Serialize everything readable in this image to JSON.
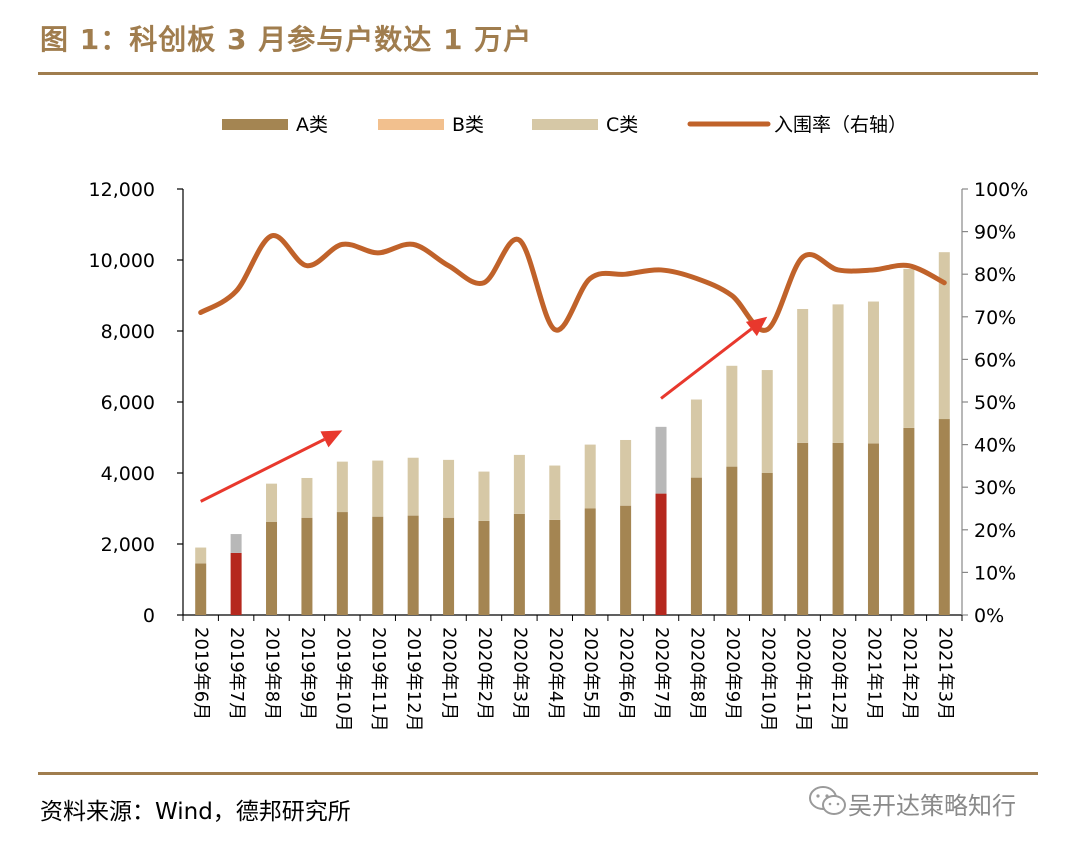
{
  "figure": {
    "title": "图 1：科创板 3 月参与户数达 1 万户",
    "source": "资料来源：Wind，德邦研究所",
    "watermark": "吴开达策略知行"
  },
  "chart_data": {
    "type": "bar",
    "stacked": true,
    "title": "",
    "legend": [
      "A类",
      "B类",
      "C类",
      "入围率（右轴）"
    ],
    "legend_position": "top",
    "categories": [
      "2019年6月",
      "2019年7月",
      "2019年8月",
      "2019年9月",
      "2019年10月",
      "2019年11月",
      "2019年12月",
      "2020年1月",
      "2020年2月",
      "2020年3月",
      "2020年4月",
      "2020年5月",
      "2020年6月",
      "2020年7月",
      "2020年8月",
      "2020年9月",
      "2020年10月",
      "2020年11月",
      "2020年12月",
      "2021年1月",
      "2021年2月",
      "2021年3月"
    ],
    "series": [
      {
        "name": "A类",
        "type": "bar",
        "axis": "left",
        "color": "#a48552",
        "values": [
          1450,
          1750,
          2620,
          2740,
          2900,
          2770,
          2800,
          2740,
          2650,
          2850,
          2680,
          3000,
          3080,
          3420,
          3870,
          4180,
          4000,
          4850,
          4850,
          4830,
          5270,
          5520
        ]
      },
      {
        "name": "B类",
        "type": "bar",
        "axis": "left",
        "color": "#f2c08e",
        "values": [
          0,
          0,
          0,
          0,
          0,
          0,
          0,
          0,
          0,
          0,
          0,
          0,
          0,
          0,
          0,
          0,
          0,
          0,
          0,
          0,
          0,
          0
        ]
      },
      {
        "name": "C类",
        "type": "bar",
        "axis": "left",
        "color": "#d6c8a6",
        "values": [
          450,
          530,
          1080,
          1120,
          1420,
          1580,
          1630,
          1630,
          1390,
          1660,
          1530,
          1800,
          1850,
          1880,
          2200,
          2840,
          2900,
          3770,
          3900,
          4000,
          4480,
          4700
        ]
      },
      {
        "name": "入围率（右轴）",
        "type": "line",
        "axis": "right",
        "color": "#c0622a",
        "values": [
          71,
          76,
          89,
          82,
          87,
          85,
          87,
          82,
          78,
          88,
          67,
          79,
          80,
          81,
          79,
          75,
          67,
          84,
          81,
          81,
          82,
          78
        ]
      }
    ],
    "left_axis": {
      "ylim": [
        0,
        12000
      ],
      "ticks": [
        "0",
        "2,000",
        "4,000",
        "6,000",
        "8,000",
        "10,000",
        "12,000"
      ]
    },
    "right_axis": {
      "ylim": [
        0,
        100
      ],
      "ticks": [
        "0%",
        "10%",
        "20%",
        "30%",
        "40%",
        "50%",
        "60%",
        "70%",
        "80%",
        "90%",
        "100%"
      ]
    },
    "highlights": [
      {
        "category": "2019年7月",
        "lower_color": "#b5281e",
        "upper_color": "#b8b8b8"
      },
      {
        "category": "2020年7月",
        "lower_color": "#b5281e",
        "upper_color": "#b8b8b8"
      }
    ],
    "annotations": [
      {
        "type": "arrow",
        "color": "#e8382d",
        "from": {
          "category": "2019年6月",
          "y": 3200
        },
        "to": {
          "category": "2019年10月",
          "y": 5200
        }
      },
      {
        "type": "arrow",
        "color": "#e8382d",
        "from": {
          "category": "2020年7月",
          "y": 6100
        },
        "to": {
          "category": "2020年10月",
          "y": 8400
        }
      }
    ],
    "grid": false
  }
}
